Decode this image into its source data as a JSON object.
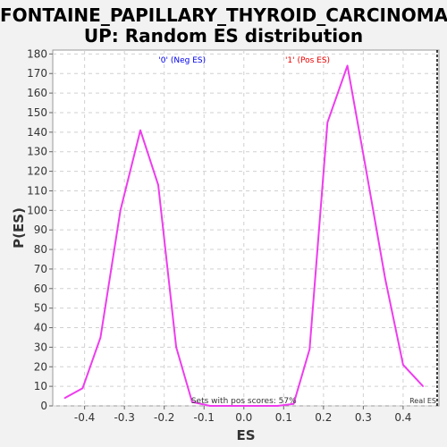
{
  "chart_data": {
    "type": "line",
    "title_lines": [
      "FONTAINE_PAPILLARY_THYROID_CARCINOMA_",
      "UP: Random ES distribution"
    ],
    "xlabel": "ES",
    "ylabel": "P(ES)",
    "xlim": [
      -0.48,
      0.49
    ],
    "ylim": [
      0,
      182
    ],
    "x_ticks": [
      -0.4,
      -0.3,
      -0.2,
      -0.1,
      0.0,
      0.1,
      0.2,
      0.3,
      0.4
    ],
    "x_tick_labels": [
      "-0.4",
      "-0.3",
      "-0.2",
      "-0.1",
      "0.0",
      "0.1",
      "0.2",
      "0.3",
      "0.4"
    ],
    "y_ticks": [
      0,
      10,
      20,
      30,
      40,
      50,
      60,
      70,
      80,
      90,
      100,
      110,
      120,
      130,
      140,
      150,
      160,
      170,
      180
    ],
    "y_tick_labels": [
      "0",
      "10",
      "20",
      "30",
      "40",
      "50",
      "60",
      "70",
      "80",
      "90",
      "100",
      "110",
      "120",
      "130",
      "140",
      "150",
      "160",
      "170",
      "180"
    ],
    "grid": true,
    "series": [
      {
        "color": "#ee3cee",
        "x": [
          -0.45,
          -0.405,
          -0.36,
          -0.31,
          -0.26,
          -0.215,
          -0.17,
          -0.13,
          -0.085,
          -0.04,
          0.0,
          0.04,
          0.085,
          0.125,
          0.165,
          0.21,
          0.26,
          0.305,
          0.355,
          0.4,
          0.45
        ],
        "y": [
          4,
          9,
          35,
          100,
          141,
          113,
          30,
          2,
          0,
          0,
          0,
          0,
          0,
          1,
          29,
          145,
          174,
          123,
          65,
          21,
          10
        ]
      }
    ],
    "annotations": {
      "neg_label": "'0' (Neg ES)",
      "pos_label": "'1' (Pos ES)",
      "pos_scores": "Sets with pos scores: 57%",
      "real_es": "Real ES"
    },
    "colors": {
      "neg": "#0000ee",
      "pos": "#ee0000",
      "real_es_line": "#000000"
    }
  }
}
